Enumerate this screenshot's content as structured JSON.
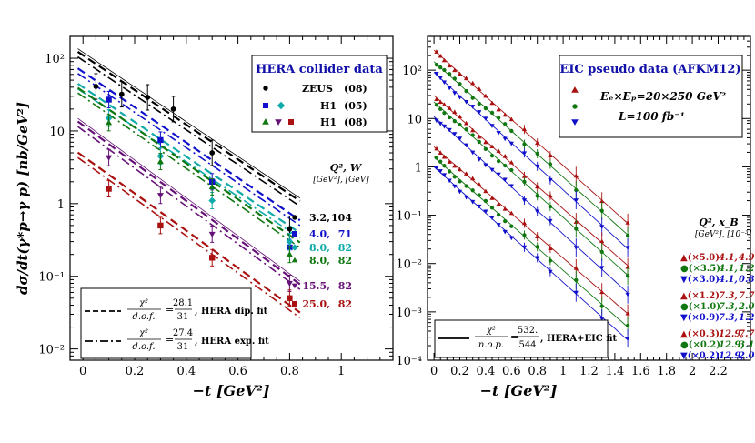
{
  "chart_data": [
    {
      "type": "scatter",
      "panel": "HERA collider data",
      "ylabel": "dσ/dt(γ*p→γ p) [nb/GeV²]",
      "xlabel": "−t [GeV²]",
      "xlim": [
        -0.05,
        1.2
      ],
      "ylim": [
        0.007,
        200
      ],
      "yscale": "log",
      "xticks": [
        "0",
        "0.2",
        "0.4",
        "0.6",
        "0.8",
        "1"
      ],
      "yticks": [
        "10⁻²",
        "10⁻¹",
        "1",
        "10",
        "10²"
      ],
      "legend_title": "HERA collider data",
      "legend_rows": [
        {
          "label": "ZEUS",
          "tag": "(08)"
        },
        {
          "label": "H1",
          "tag": "(05)"
        },
        {
          "label": "H1",
          "tag": "(08)"
        }
      ],
      "kin_header": "Q², W",
      "kin_units": "[GeV²], [GeV]",
      "kin_rows": [
        {
          "q2": "3.2,",
          "w": "104",
          "color": "#000000",
          "marker": "circle"
        },
        {
          "q2": "4.0,",
          "w": "71",
          "color": "#1111cc",
          "marker": "square"
        },
        {
          "q2": "8.0,",
          "w": "82",
          "color": "#11aaaa",
          "marker": "diamond"
        },
        {
          "q2": "8.0,",
          "w": "82",
          "color": "#117711",
          "marker": "triangle"
        },
        {
          "q2": "15.5,",
          "w": "82",
          "color": "#661177",
          "marker": "triangle-down"
        },
        {
          "q2": "25.0,",
          "w": "82",
          "color": "#aa1111",
          "marker": "square"
        }
      ],
      "fit_legend": [
        {
          "chi": "χ²",
          "den": "d.o.f.",
          "num": "28.1",
          "ndf": "31",
          "label": "HERA dip. fit",
          "style": "dashed"
        },
        {
          "chi": "χ²",
          "den": "d.o.f.",
          "num": "27.4",
          "ndf": "31",
          "label": "HERA exp. fit",
          "style": "dashdot"
        }
      ],
      "series": [
        {
          "color": "#000000",
          "marker": "circle",
          "a": 110,
          "b": 5.5,
          "points": [
            [
              0.05,
              41
            ],
            [
              0.15,
              32
            ],
            [
              0.25,
              29
            ],
            [
              0.35,
              20
            ],
            [
              0.5,
              5.0
            ],
            [
              0.8,
              0.45
            ]
          ]
        },
        {
          "color": "#1111cc",
          "marker": "square",
          "a": 65,
          "b": 5.6,
          "points": [
            [
              0.1,
              27
            ],
            [
              0.3,
              7.5
            ],
            [
              0.5,
              2.0
            ],
            [
              0.8,
              0.25
            ]
          ]
        },
        {
          "color": "#11aaaa",
          "marker": "diamond",
          "a": 40,
          "b": 5.5,
          "points": [
            [
              0.1,
              15
            ],
            [
              0.3,
              4.5
            ],
            [
              0.5,
              1.1
            ],
            [
              0.8,
              0.3
            ]
          ]
        },
        {
          "color": "#117711",
          "marker": "triangle",
          "a": 35,
          "b": 5.7,
          "points": [
            [
              0.1,
              13
            ],
            [
              0.3,
              3.8
            ],
            [
              0.5,
              1.7
            ],
            [
              0.8,
              0.2
            ]
          ]
        },
        {
          "color": "#661177",
          "marker": "triangle-down",
          "a": 12,
          "b": 6.0,
          "points": [
            [
              0.1,
              4.3
            ],
            [
              0.3,
              1.3
            ],
            [
              0.5,
              0.38
            ],
            [
              0.8,
              0.08
            ]
          ]
        },
        {
          "color": "#aa1111",
          "marker": "square",
          "a": 4.5,
          "b": 5.9,
          "points": [
            [
              0.1,
              1.6
            ],
            [
              0.3,
              0.5
            ],
            [
              0.5,
              0.18
            ],
            [
              0.8,
              0.05
            ]
          ]
        }
      ]
    },
    {
      "type": "scatter",
      "panel": "EIC pseudo data (AFKM12)",
      "xlabel": "−t [GeV²]",
      "xlim": [
        -0.05,
        2.45
      ],
      "ylim": [
        0.0001,
        500
      ],
      "yscale": "log",
      "xticks": [
        "0",
        "0.2",
        "0.4",
        "0.6",
        "0.8",
        "1",
        "1.2",
        "1.4",
        "1.6",
        "1.8",
        "2",
        "2.2"
      ],
      "yticks": [
        "10⁻⁴",
        "10⁻³",
        "10⁻²",
        "10⁻¹",
        "1",
        "10",
        "10²"
      ],
      "legend_title": "EIC pseudo data (AFKM12)",
      "legend_lines": [
        "Eₑ×Eₚ=20×250 GeV²",
        "L=100 fb⁻¹"
      ],
      "kin_header": "Q², x_B",
      "kin_units": "[GeV²], [10⁻³]",
      "kin_rows": [
        {
          "scale": "▲(×5.0)",
          "q2": "4.1,",
          "xb": "4.9",
          "color": "#aa1111"
        },
        {
          "scale": "●(×3.5)",
          "q2": "4.1,",
          "xb": "1.2",
          "color": "#117711"
        },
        {
          "scale": "▼(×3.0)",
          "q2": "4.1,",
          "xb": "0.8",
          "color": "#1111cc"
        },
        {
          "scale": "▲(×1.2)",
          "q2": "7.3,",
          "xb": "7.7",
          "color": "#aa1111"
        },
        {
          "scale": "●(×1.0)",
          "q2": "7.3,",
          "xb": "2.0",
          "color": "#117711"
        },
        {
          "scale": "▼(×0.9)",
          "q2": "7.3,",
          "xb": "1.2",
          "color": "#1111cc"
        },
        {
          "scale": "▲(×0.3)",
          "q2": "12.9,",
          "xb": "7.7",
          "color": "#aa1111"
        },
        {
          "scale": "●(×0.2)",
          "q2": "12.9,",
          "xb": "3.1",
          "color": "#117711"
        },
        {
          "scale": "▼(×0.2)",
          "q2": "12.9,",
          "xb": "2.0",
          "color": "#1111cc"
        }
      ],
      "fit_legend": {
        "chi": "χ²",
        "den": "n.o.p.",
        "num": "532.",
        "ndf": "544",
        "label": "HERA+EIC fit"
      },
      "t_points": [
        0.02,
        0.05,
        0.08,
        0.12,
        0.16,
        0.2,
        0.25,
        0.3,
        0.35,
        0.4,
        0.45,
        0.5,
        0.55,
        0.6,
        0.7,
        0.8,
        0.9,
        1.1,
        1.3,
        1.5
      ],
      "series": [
        {
          "color": "#aa1111",
          "marker": "triangle",
          "a": 260,
          "b": 5.5,
          "group": 1
        },
        {
          "color": "#117711",
          "marker": "circle",
          "a": 150,
          "b": 5.5,
          "group": 1
        },
        {
          "color": "#1111cc",
          "marker": "triangle-down",
          "a": 90,
          "b": 5.6,
          "group": 1
        },
        {
          "color": "#aa1111",
          "marker": "triangle",
          "a": 30,
          "b": 5.4,
          "group": 2
        },
        {
          "color": "#117711",
          "marker": "circle",
          "a": 22,
          "b": 5.5,
          "group": 2
        },
        {
          "color": "#1111cc",
          "marker": "triangle-down",
          "a": 11,
          "b": 5.6,
          "group": 2
        },
        {
          "color": "#aa1111",
          "marker": "triangle",
          "a": 2.6,
          "b": 5.3,
          "group": 3
        },
        {
          "color": "#117711",
          "marker": "circle",
          "a": 1.6,
          "b": 5.4,
          "group": 3
        },
        {
          "color": "#1111cc",
          "marker": "triangle-down",
          "a": 1.0,
          "b": 5.5,
          "group": 3
        }
      ]
    }
  ]
}
